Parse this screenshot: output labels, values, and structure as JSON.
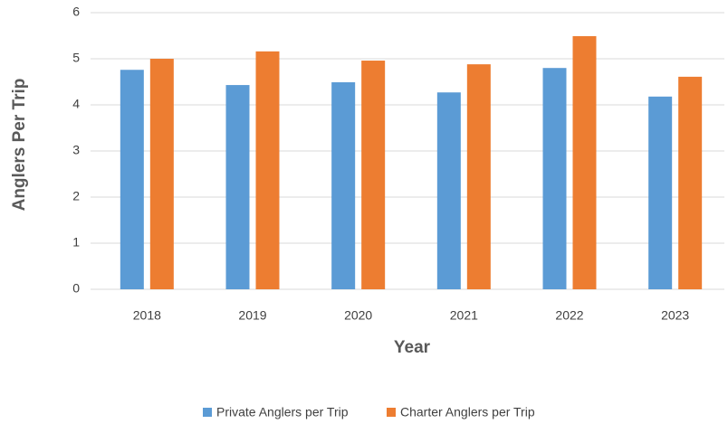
{
  "chart_data": {
    "type": "bar",
    "xlabel": "Year",
    "ylabel": "Anglers Per Trip",
    "categories": [
      "2018",
      "2019",
      "2020",
      "2021",
      "2022",
      "2023"
    ],
    "series": [
      {
        "name": "Private Anglers per Trip",
        "color": "#5b9bd5",
        "values": [
          4.76,
          4.43,
          4.49,
          4.27,
          4.8,
          4.18
        ]
      },
      {
        "name": "Charter Anglers per Trip",
        "color": "#ed7d31",
        "values": [
          5.0,
          5.16,
          4.96,
          4.88,
          5.49,
          4.61
        ]
      }
    ],
    "ylim": [
      0,
      6
    ],
    "yticks": [
      0,
      1,
      2,
      3,
      4,
      5,
      6
    ],
    "grid": true,
    "legend": "bottom"
  }
}
